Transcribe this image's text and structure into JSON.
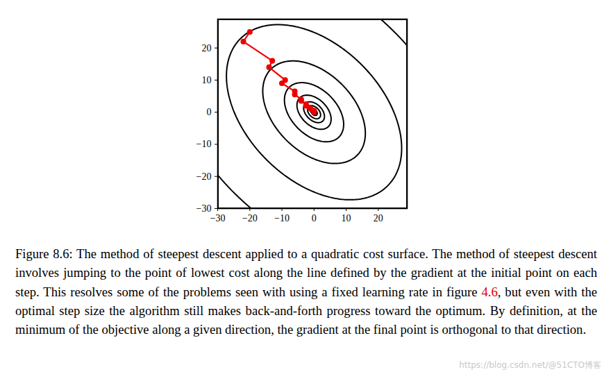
{
  "chart_data": {
    "type": "contour",
    "caption": [
      {
        "text": "Figure 8.6: The method of steepest descent applied to a quadratic cost surface. The method of steepest descent involves jumping to the point of lowest cost along the line defined by the gradient at the initial point on each step. This resolves some of the problems seen with using a fixed learning rate in figure "
      },
      {
        "text": "4.6",
        "color": "#e00000"
      },
      {
        "text": ", but even with the optimal step size the algorithm still makes back-and-forth progress toward the optimum. By definition, at the minimum of the objective along a given direction, the gradient at the final point is orthogonal to that direction."
      }
    ],
    "watermark": "https://blog.csdn.net/@51CTO博客",
    "xlim": [
      -30,
      29
    ],
    "ylim": [
      -30,
      29
    ],
    "xticks": [
      -30,
      -20,
      -10,
      0,
      10,
      20
    ],
    "yticks": [
      -30,
      -20,
      -10,
      0,
      10,
      20
    ],
    "grid": false,
    "quadratic": {
      "xx": 1.7,
      "xy": 1.4,
      "yy": 1.7
    },
    "contour_levels": [
      1.5,
      6,
      15,
      40,
      120,
      360,
      1050,
      3000
    ],
    "contour_color": "#000000",
    "series": [
      {
        "name": "steepest descent",
        "color": "#ee0000",
        "marker": "circle",
        "line_style": "solid",
        "x": [
          -20,
          -22,
          -13,
          -14,
          -9,
          -10,
          -6,
          -6,
          -4,
          -4,
          -2.5,
          -2.5,
          -1.5,
          -1,
          0,
          0
        ],
        "values": [
          25,
          22,
          16,
          14,
          10,
          9,
          6.5,
          5.5,
          4,
          3.5,
          2.5,
          2,
          1.5,
          1,
          0.5,
          0
        ]
      }
    ]
  }
}
